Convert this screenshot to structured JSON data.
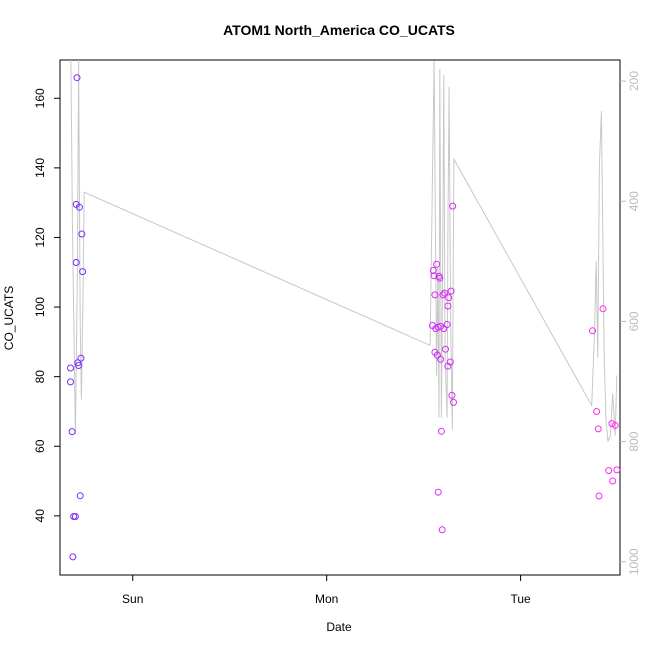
{
  "chart_data": {
    "type": "scatter",
    "title": "ATOM1 North_America CO_UCATS",
    "xlabel": "Date",
    "ylabel": "CO_UCATS",
    "x_ticks": [
      {
        "label": "Sun",
        "t": 24
      },
      {
        "label": "Mon",
        "t": 48
      },
      {
        "label": "Tue",
        "t": 72
      }
    ],
    "x_range_hours": [
      15,
      84.3
    ],
    "ylim": [
      23,
      171
    ],
    "y_ticks": [
      40,
      60,
      80,
      100,
      120,
      140,
      160
    ],
    "y2_ticks": [
      200,
      400,
      600,
      800,
      1000
    ],
    "y2_range": [
      1022,
      165
    ],
    "y2_reversed": true,
    "grid": false,
    "colors": {
      "points_start": "#7b2cff",
      "points_end": "#ff2cf2",
      "line": "#c8c8c8",
      "right_axis": "#bbbbbb"
    },
    "points": [
      {
        "t": 16.3,
        "v": 82.5
      },
      {
        "t": 16.3,
        "v": 78.5
      },
      {
        "t": 16.5,
        "v": 64.2
      },
      {
        "t": 16.6,
        "v": 28.2
      },
      {
        "t": 16.7,
        "v": 39.8
      },
      {
        "t": 16.9,
        "v": 39.8
      },
      {
        "t": 17.0,
        "v": 112.8
      },
      {
        "t": 17.0,
        "v": 129.5
      },
      {
        "t": 17.1,
        "v": 165.9
      },
      {
        "t": 17.2,
        "v": 84.0
      },
      {
        "t": 17.3,
        "v": 83.2
      },
      {
        "t": 17.4,
        "v": 128.7
      },
      {
        "t": 17.5,
        "v": 45.8
      },
      {
        "t": 17.6,
        "v": 85.3
      },
      {
        "t": 17.7,
        "v": 121.0
      },
      {
        "t": 17.8,
        "v": 110.2
      },
      {
        "t": 61.1,
        "v": 94.7
      },
      {
        "t": 61.2,
        "v": 110.5
      },
      {
        "t": 61.3,
        "v": 109.0
      },
      {
        "t": 61.4,
        "v": 87.0
      },
      {
        "t": 61.4,
        "v": 103.5
      },
      {
        "t": 61.5,
        "v": 93.8
      },
      {
        "t": 61.6,
        "v": 112.3
      },
      {
        "t": 61.7,
        "v": 86.2
      },
      {
        "t": 61.8,
        "v": 94.2
      },
      {
        "t": 61.8,
        "v": 46.8
      },
      {
        "t": 61.9,
        "v": 108.8
      },
      {
        "t": 62.0,
        "v": 108.3
      },
      {
        "t": 62.1,
        "v": 94.5
      },
      {
        "t": 62.1,
        "v": 85.0
      },
      {
        "t": 62.2,
        "v": 64.3
      },
      {
        "t": 62.3,
        "v": 36.0
      },
      {
        "t": 62.4,
        "v": 103.5
      },
      {
        "t": 62.5,
        "v": 93.8
      },
      {
        "t": 62.6,
        "v": 104.0
      },
      {
        "t": 62.7,
        "v": 87.9
      },
      {
        "t": 62.9,
        "v": 95.0
      },
      {
        "t": 63.0,
        "v": 100.3
      },
      {
        "t": 63.0,
        "v": 83.0
      },
      {
        "t": 63.1,
        "v": 102.7
      },
      {
        "t": 63.3,
        "v": 84.2
      },
      {
        "t": 63.4,
        "v": 104.6
      },
      {
        "t": 63.5,
        "v": 74.6
      },
      {
        "t": 63.6,
        "v": 129.0
      },
      {
        "t": 63.7,
        "v": 72.6
      },
      {
        "t": 80.9,
        "v": 93.2
      },
      {
        "t": 81.4,
        "v": 70.0
      },
      {
        "t": 81.6,
        "v": 65.0
      },
      {
        "t": 81.7,
        "v": 45.7
      },
      {
        "t": 82.2,
        "v": 99.5
      },
      {
        "t": 82.9,
        "v": 53.0
      },
      {
        "t": 83.3,
        "v": 66.5
      },
      {
        "t": 83.4,
        "v": 50.0
      },
      {
        "t": 83.7,
        "v": 66.0
      },
      {
        "t": 83.9,
        "v": 53.2
      }
    ],
    "line": [
      {
        "t": 16.35,
        "p": 165
      },
      {
        "t": 16.55,
        "p": 450
      },
      {
        "t": 16.9,
        "p": 788
      },
      {
        "t": 17.15,
        "p": 520
      },
      {
        "t": 17.3,
        "p": 165
      },
      {
        "t": 17.5,
        "p": 600
      },
      {
        "t": 17.65,
        "p": 730
      },
      {
        "t": 17.85,
        "p": 560
      },
      {
        "t": 18.0,
        "p": 385
      },
      {
        "t": 60.8,
        "p": 640
      },
      {
        "t": 61.3,
        "p": 166
      },
      {
        "t": 61.45,
        "p": 440
      },
      {
        "t": 61.6,
        "p": 690
      },
      {
        "t": 61.75,
        "p": 510
      },
      {
        "t": 61.9,
        "p": 760
      },
      {
        "t": 62.0,
        "p": 180
      },
      {
        "t": 62.2,
        "p": 760
      },
      {
        "t": 62.35,
        "p": 520
      },
      {
        "t": 62.5,
        "p": 190
      },
      {
        "t": 62.65,
        "p": 660
      },
      {
        "t": 62.9,
        "p": 760
      },
      {
        "t": 63.0,
        "p": 450
      },
      {
        "t": 63.15,
        "p": 210
      },
      {
        "t": 63.35,
        "p": 600
      },
      {
        "t": 63.55,
        "p": 780
      },
      {
        "t": 63.75,
        "p": 330
      },
      {
        "t": 80.8,
        "p": 740
      },
      {
        "t": 81.15,
        "p": 620
      },
      {
        "t": 81.35,
        "p": 500
      },
      {
        "t": 81.55,
        "p": 660
      },
      {
        "t": 81.75,
        "p": 340
      },
      {
        "t": 82.0,
        "p": 250
      },
      {
        "t": 82.35,
        "p": 660
      },
      {
        "t": 82.55,
        "p": 760
      },
      {
        "t": 82.8,
        "p": 800
      },
      {
        "t": 83.1,
        "p": 790
      },
      {
        "t": 83.4,
        "p": 720
      },
      {
        "t": 83.7,
        "p": 790
      },
      {
        "t": 83.9,
        "p": 690
      }
    ]
  }
}
